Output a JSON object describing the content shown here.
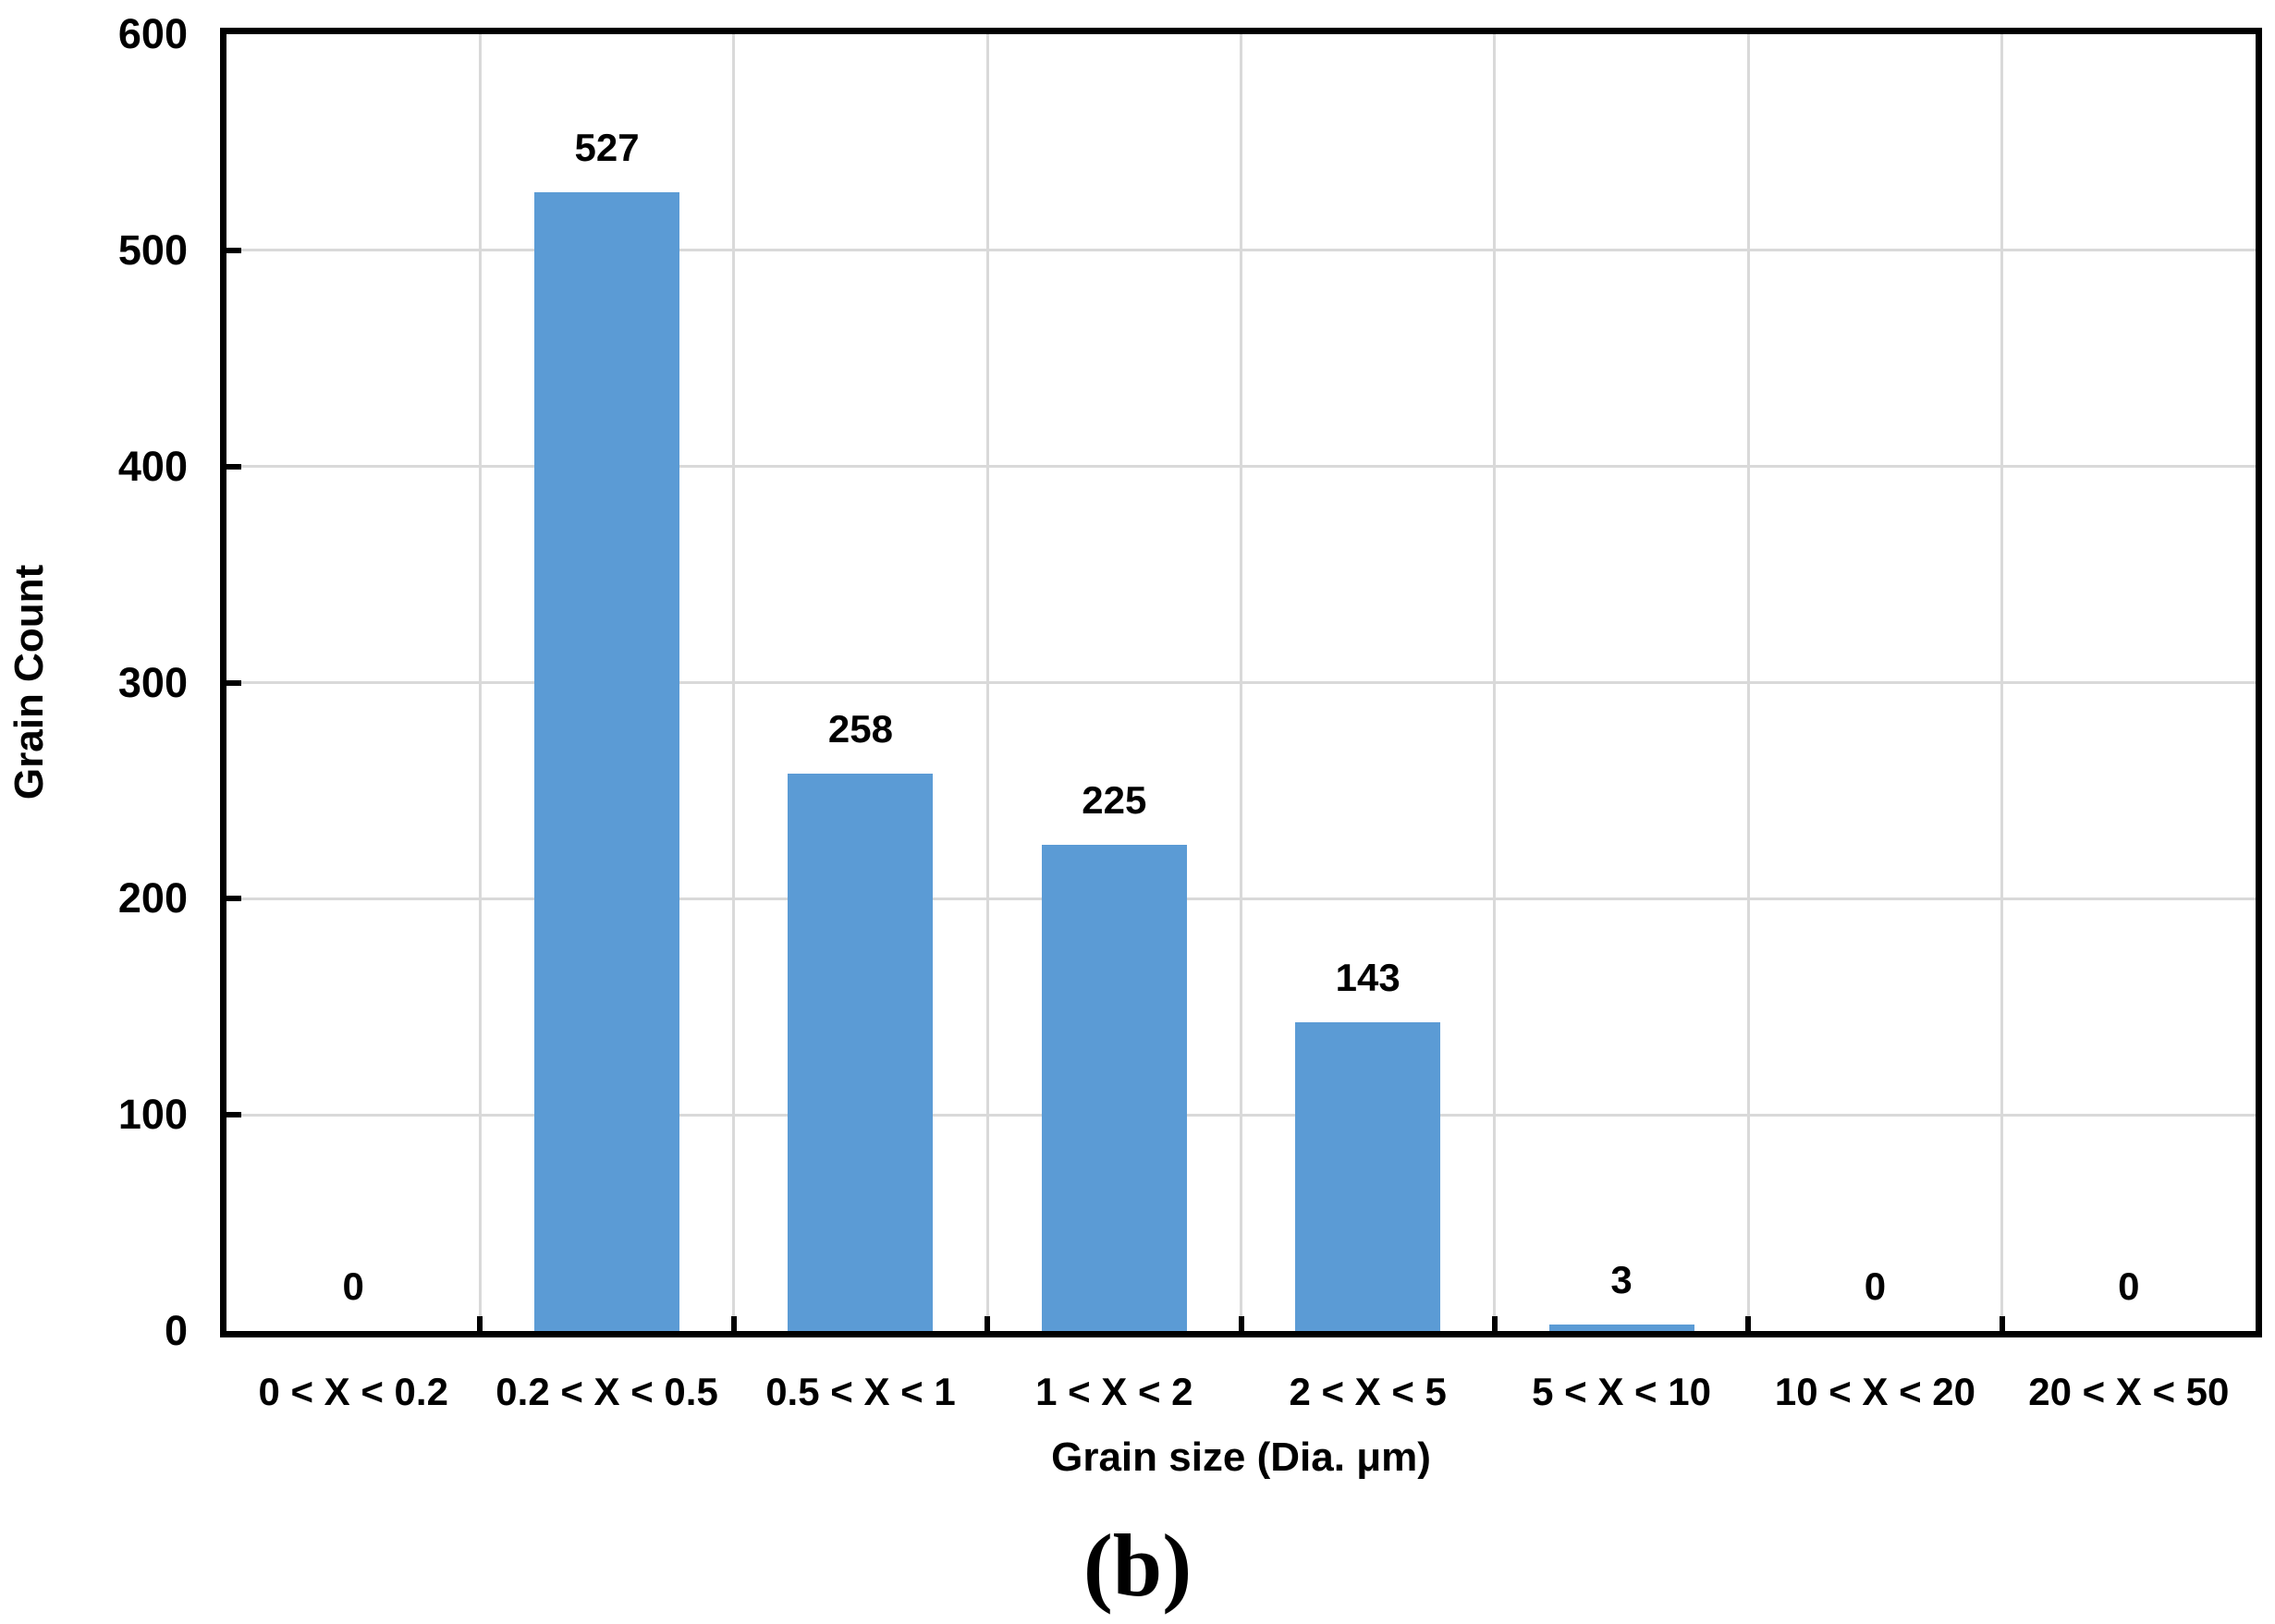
{
  "figure": {
    "caption": "(b)"
  },
  "chart_data": {
    "type": "bar",
    "title": "",
    "xlabel": "Grain size (Dia. μm)",
    "ylabel": "Grain Count",
    "categories": [
      "0 < X < 0.2",
      "0.2 < X < 0.5",
      "0.5 < X < 1",
      "1 < X < 2",
      "2 < X < 5",
      "5 < X < 10",
      "10 < X < 20",
      "20 < X < 50"
    ],
    "values": [
      0,
      527,
      258,
      225,
      143,
      3,
      0,
      0
    ],
    "data_labels": [
      "0",
      "527",
      "258",
      "225",
      "143",
      "3",
      "0",
      "0"
    ],
    "ylim": [
      0,
      600
    ],
    "yticks": [
      0,
      100,
      200,
      300,
      400,
      500,
      600
    ],
    "grid": true,
    "legend": "none",
    "colors": {
      "bar": "#5B9BD5",
      "gridline": "#D9D9D9",
      "axis": "#000000",
      "text": "#000000",
      "background": "#FFFFFF"
    }
  }
}
